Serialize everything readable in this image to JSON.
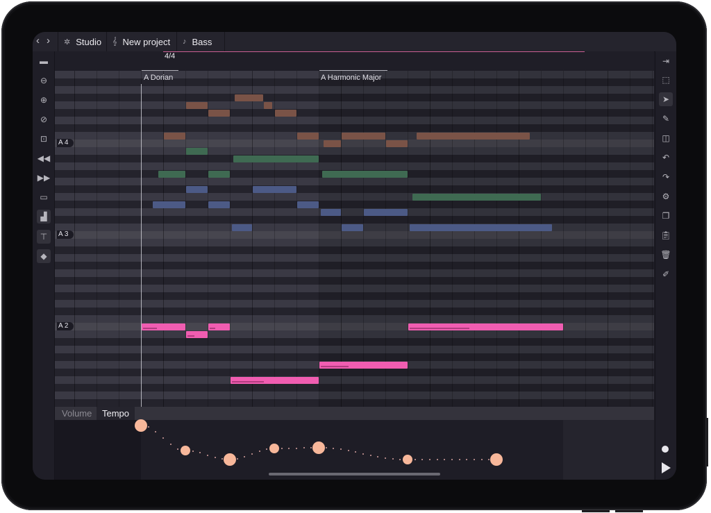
{
  "breadcrumbs": [
    {
      "icon": "gear-icon",
      "label": "Studio"
    },
    {
      "icon": "treble-clef-icon",
      "label": "New project"
    },
    {
      "icon": "music-note-icon",
      "label": "Bass"
    }
  ],
  "ruler": {
    "time_signature": "4/4"
  },
  "scales": [
    {
      "label": "A Dorian"
    },
    {
      "label": "A Harmonic Major"
    }
  ],
  "note_labels": {
    "a4": "A 4",
    "a3": "A 3",
    "a2": "A 2"
  },
  "automation_tabs": [
    {
      "label": "Volume",
      "active": false
    },
    {
      "label": "Tempo",
      "active": true
    }
  ],
  "left_toolbar": [
    "layout-icon",
    "zoom-out-icon",
    "zoom-in-icon",
    "zoom-fit-icon",
    "focus-icon",
    "rewind-icon",
    "fast-forward-icon",
    "panel-icon",
    "bar-chart-icon",
    "paint-roller-icon",
    "tag-icon"
  ],
  "right_toolbar": [
    "collapse-panel-icon",
    "marquee-select-icon",
    "pointer-icon",
    "pencil-icon",
    "split-icon",
    "undo-icon",
    "redo-icon",
    "settings-icon",
    "copy-icon",
    "paste-icon",
    "trash-icon",
    "clipboard-edit-icon"
  ],
  "colors": {
    "pink_note": "#f05db1",
    "brown_note": "#7a5347",
    "green_note": "#3f6a52",
    "blue_note": "#4c5a86",
    "tempo_point": "#f7b79a",
    "accent_line": "#cc5f93"
  }
}
